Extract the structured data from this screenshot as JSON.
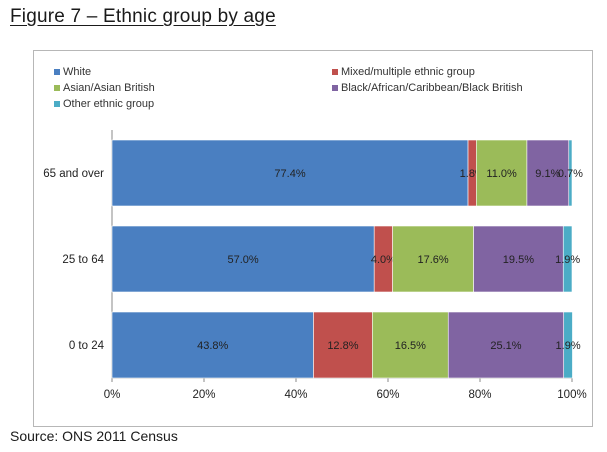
{
  "figure_title": "Figure 7 – Ethnic group by age",
  "source": "Source: ONS 2011 Census",
  "colors": {
    "White": "#4a7fc1",
    "Mixed/multiple ethnic group": "#c0504d",
    "Asian/Asian British": "#9bbb59",
    "Black/African/Caribbean/Black British": "#8064a2",
    "Other ethnic group": "#4bacc6"
  },
  "chart_data": {
    "type": "bar",
    "orientation": "horizontal",
    "stacked": "percent",
    "categories": [
      "65 and over",
      "25 to 64",
      "0 to 24"
    ],
    "series": [
      {
        "name": "White",
        "values": [
          77.4,
          57.0,
          43.8
        ],
        "labels": [
          "77.4%",
          "57.0%",
          "43.8%"
        ]
      },
      {
        "name": "Mixed/multiple ethnic group",
        "values": [
          1.8,
          4.0,
          12.8
        ],
        "labels": [
          "1.8%",
          "4.0%",
          "12.8%"
        ]
      },
      {
        "name": "Asian/Asian British",
        "values": [
          11.0,
          17.6,
          16.5
        ],
        "labels": [
          "11.0%",
          "17.6%",
          "16.5%"
        ]
      },
      {
        "name": "Black/African/Caribbean/Black British",
        "values": [
          9.1,
          19.5,
          25.1
        ],
        "labels": [
          "9.1%",
          "19.5%",
          "25.1%"
        ]
      },
      {
        "name": "Other ethnic group",
        "values": [
          0.7,
          1.9,
          1.9
        ],
        "labels": [
          "0.7%",
          "1.9%",
          "1.9%"
        ]
      }
    ],
    "xlim": [
      0,
      100
    ],
    "x_ticks": [
      "0%",
      "20%",
      "40%",
      "60%",
      "80%",
      "100%"
    ],
    "legend_position": "top",
    "grid": false
  }
}
